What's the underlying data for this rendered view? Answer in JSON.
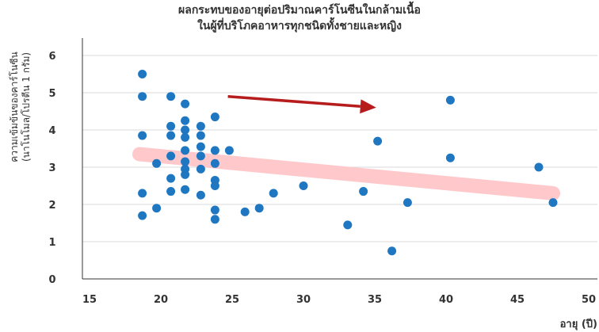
{
  "chart_data": {
    "type": "scatter",
    "title_lines": [
      "ผลกระทบของอายุต่อปริมาณคาร์โนซีนในกล้ามเนื้อ",
      "ในผู้ที่บริโภคอาหารทุกชนิดทั้งชายและหญิง"
    ],
    "ylabel_lines": [
      "ความเข้มข้นของคาร์โนซีน",
      "(นาโนโมล/โปรตีน 1 กรัม)"
    ],
    "xlabel": "อายุ (ปี)",
    "xlim": [
      15,
      50
    ],
    "ylim": [
      0,
      6.5
    ],
    "xticks": [
      "15",
      "20",
      "25",
      "30",
      "35",
      "40",
      "45",
      "50"
    ],
    "yticks": [
      "0",
      "1",
      "2",
      "3",
      "4",
      "5",
      "6"
    ],
    "grid": "horizontal",
    "point_color": "#1f77c1",
    "trend_color": "#ffc9cc",
    "arrow_color": "#b71c1c",
    "trendline": {
      "x": [
        18.5,
        47.5
      ],
      "y": [
        3.35,
        2.3
      ]
    },
    "arrow": {
      "x": [
        24.7,
        35.1
      ],
      "y": [
        4.9,
        4.6
      ]
    },
    "points": [
      {
        "x": 18.7,
        "y": 5.5
      },
      {
        "x": 18.7,
        "y": 4.9
      },
      {
        "x": 18.7,
        "y": 3.85
      },
      {
        "x": 18.7,
        "y": 2.3
      },
      {
        "x": 18.7,
        "y": 1.7
      },
      {
        "x": 19.7,
        "y": 3.1
      },
      {
        "x": 19.7,
        "y": 1.9
      },
      {
        "x": 20.7,
        "y": 4.9
      },
      {
        "x": 20.7,
        "y": 4.1
      },
      {
        "x": 20.7,
        "y": 3.85
      },
      {
        "x": 20.7,
        "y": 3.3
      },
      {
        "x": 20.7,
        "y": 2.7
      },
      {
        "x": 20.7,
        "y": 2.35
      },
      {
        "x": 21.7,
        "y": 4.7
      },
      {
        "x": 21.7,
        "y": 4.25
      },
      {
        "x": 21.7,
        "y": 4.0
      },
      {
        "x": 21.7,
        "y": 3.8
      },
      {
        "x": 21.7,
        "y": 3.45
      },
      {
        "x": 21.7,
        "y": 3.15
      },
      {
        "x": 21.7,
        "y": 2.95
      },
      {
        "x": 21.7,
        "y": 2.8
      },
      {
        "x": 21.7,
        "y": 2.4
      },
      {
        "x": 22.8,
        "y": 4.1
      },
      {
        "x": 22.8,
        "y": 3.85
      },
      {
        "x": 22.8,
        "y": 3.55
      },
      {
        "x": 22.8,
        "y": 3.3
      },
      {
        "x": 22.8,
        "y": 2.95
      },
      {
        "x": 22.8,
        "y": 2.25
      },
      {
        "x": 23.8,
        "y": 4.35
      },
      {
        "x": 23.8,
        "y": 3.45
      },
      {
        "x": 23.8,
        "y": 3.1
      },
      {
        "x": 23.8,
        "y": 2.65
      },
      {
        "x": 23.8,
        "y": 2.5
      },
      {
        "x": 23.8,
        "y": 1.85
      },
      {
        "x": 23.8,
        "y": 1.6
      },
      {
        "x": 24.8,
        "y": 3.45
      },
      {
        "x": 25.9,
        "y": 1.8
      },
      {
        "x": 26.9,
        "y": 1.9
      },
      {
        "x": 27.9,
        "y": 2.3
      },
      {
        "x": 30.0,
        "y": 2.5
      },
      {
        "x": 33.1,
        "y": 1.45
      },
      {
        "x": 34.2,
        "y": 2.35
      },
      {
        "x": 35.2,
        "y": 3.7
      },
      {
        "x": 36.2,
        "y": 0.75
      },
      {
        "x": 37.3,
        "y": 2.05
      },
      {
        "x": 40.3,
        "y": 4.8
      },
      {
        "x": 40.3,
        "y": 3.25
      },
      {
        "x": 46.5,
        "y": 3.0
      },
      {
        "x": 47.5,
        "y": 2.05
      }
    ]
  }
}
